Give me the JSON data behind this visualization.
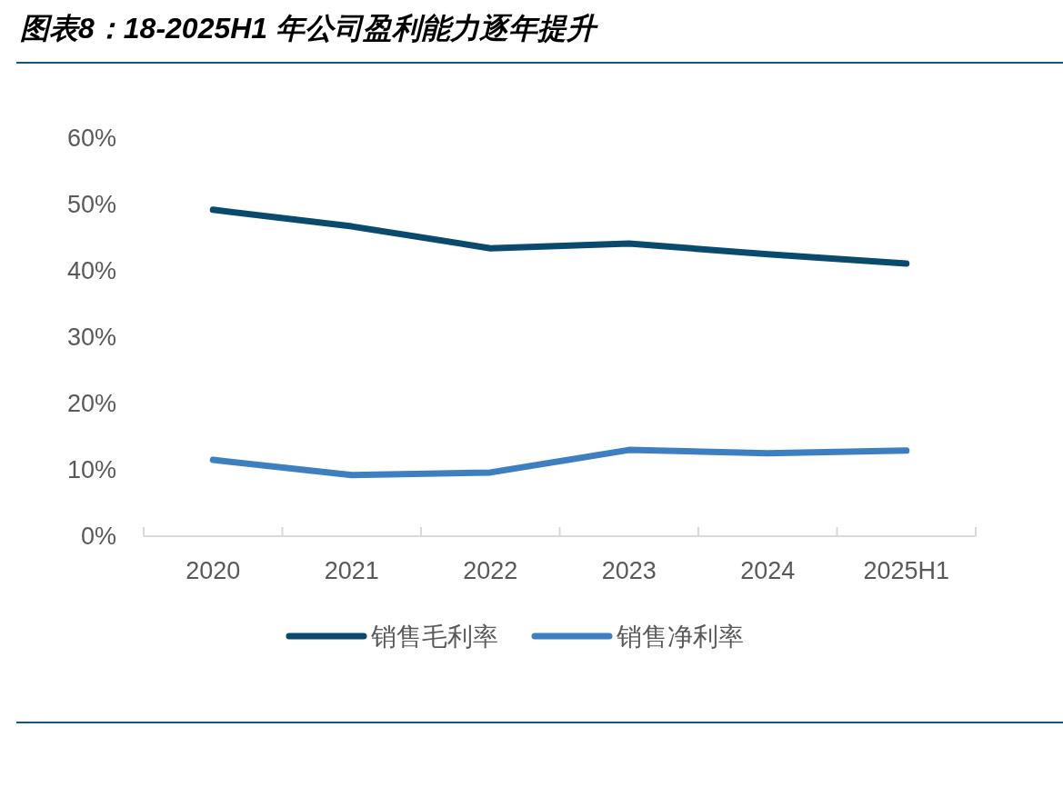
{
  "chart_data": {
    "type": "line",
    "title": "图表8：18-2025H1 年公司盈利能力逐年提升",
    "categories": [
      "2020",
      "2021",
      "2022",
      "2023",
      "2024",
      "2025H1"
    ],
    "series": [
      {
        "name": "销售毛利率",
        "color": "#0b4a6f",
        "values": [
          49.2,
          46.7,
          43.4,
          44.1,
          42.5,
          41.1
        ]
      },
      {
        "name": "销售净利率",
        "color": "#3e7fc1",
        "values": [
          11.5,
          9.2,
          9.6,
          13.0,
          12.5,
          12.9
        ]
      }
    ],
    "ylim": [
      0,
      60
    ],
    "yticks": [
      {
        "value": 0,
        "label": "0%"
      },
      {
        "value": 10,
        "label": "10%"
      },
      {
        "value": 20,
        "label": "20%"
      },
      {
        "value": 30,
        "label": "30%"
      },
      {
        "value": 40,
        "label": "40%"
      },
      {
        "value": 50,
        "label": "50%"
      },
      {
        "value": 60,
        "label": "60%"
      }
    ],
    "grid": false,
    "legend": "bottom",
    "marker": "none",
    "line_style": "solid"
  }
}
